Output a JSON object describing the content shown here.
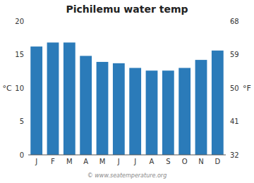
{
  "chart_data": {
    "type": "bar",
    "title": "Pichilemu water temp",
    "categories": [
      "J",
      "F",
      "M",
      "A",
      "M",
      "J",
      "J",
      "A",
      "S",
      "O",
      "N",
      "D"
    ],
    "values": [
      16.2,
      16.8,
      16.8,
      14.8,
      13.9,
      13.7,
      13.0,
      12.6,
      12.6,
      13.0,
      14.2,
      15.6
    ],
    "color": "#2b7bb9",
    "ylabel": "°C",
    "y2label": "°F",
    "ylim": [
      0,
      20
    ],
    "yticks": [
      0,
      5,
      10,
      15,
      20
    ],
    "y2lim": [
      32,
      68
    ],
    "y2ticks": [
      32,
      41,
      50,
      59,
      68
    ],
    "grid": false,
    "annotations": [
      "© www.seatemperature.org"
    ]
  }
}
